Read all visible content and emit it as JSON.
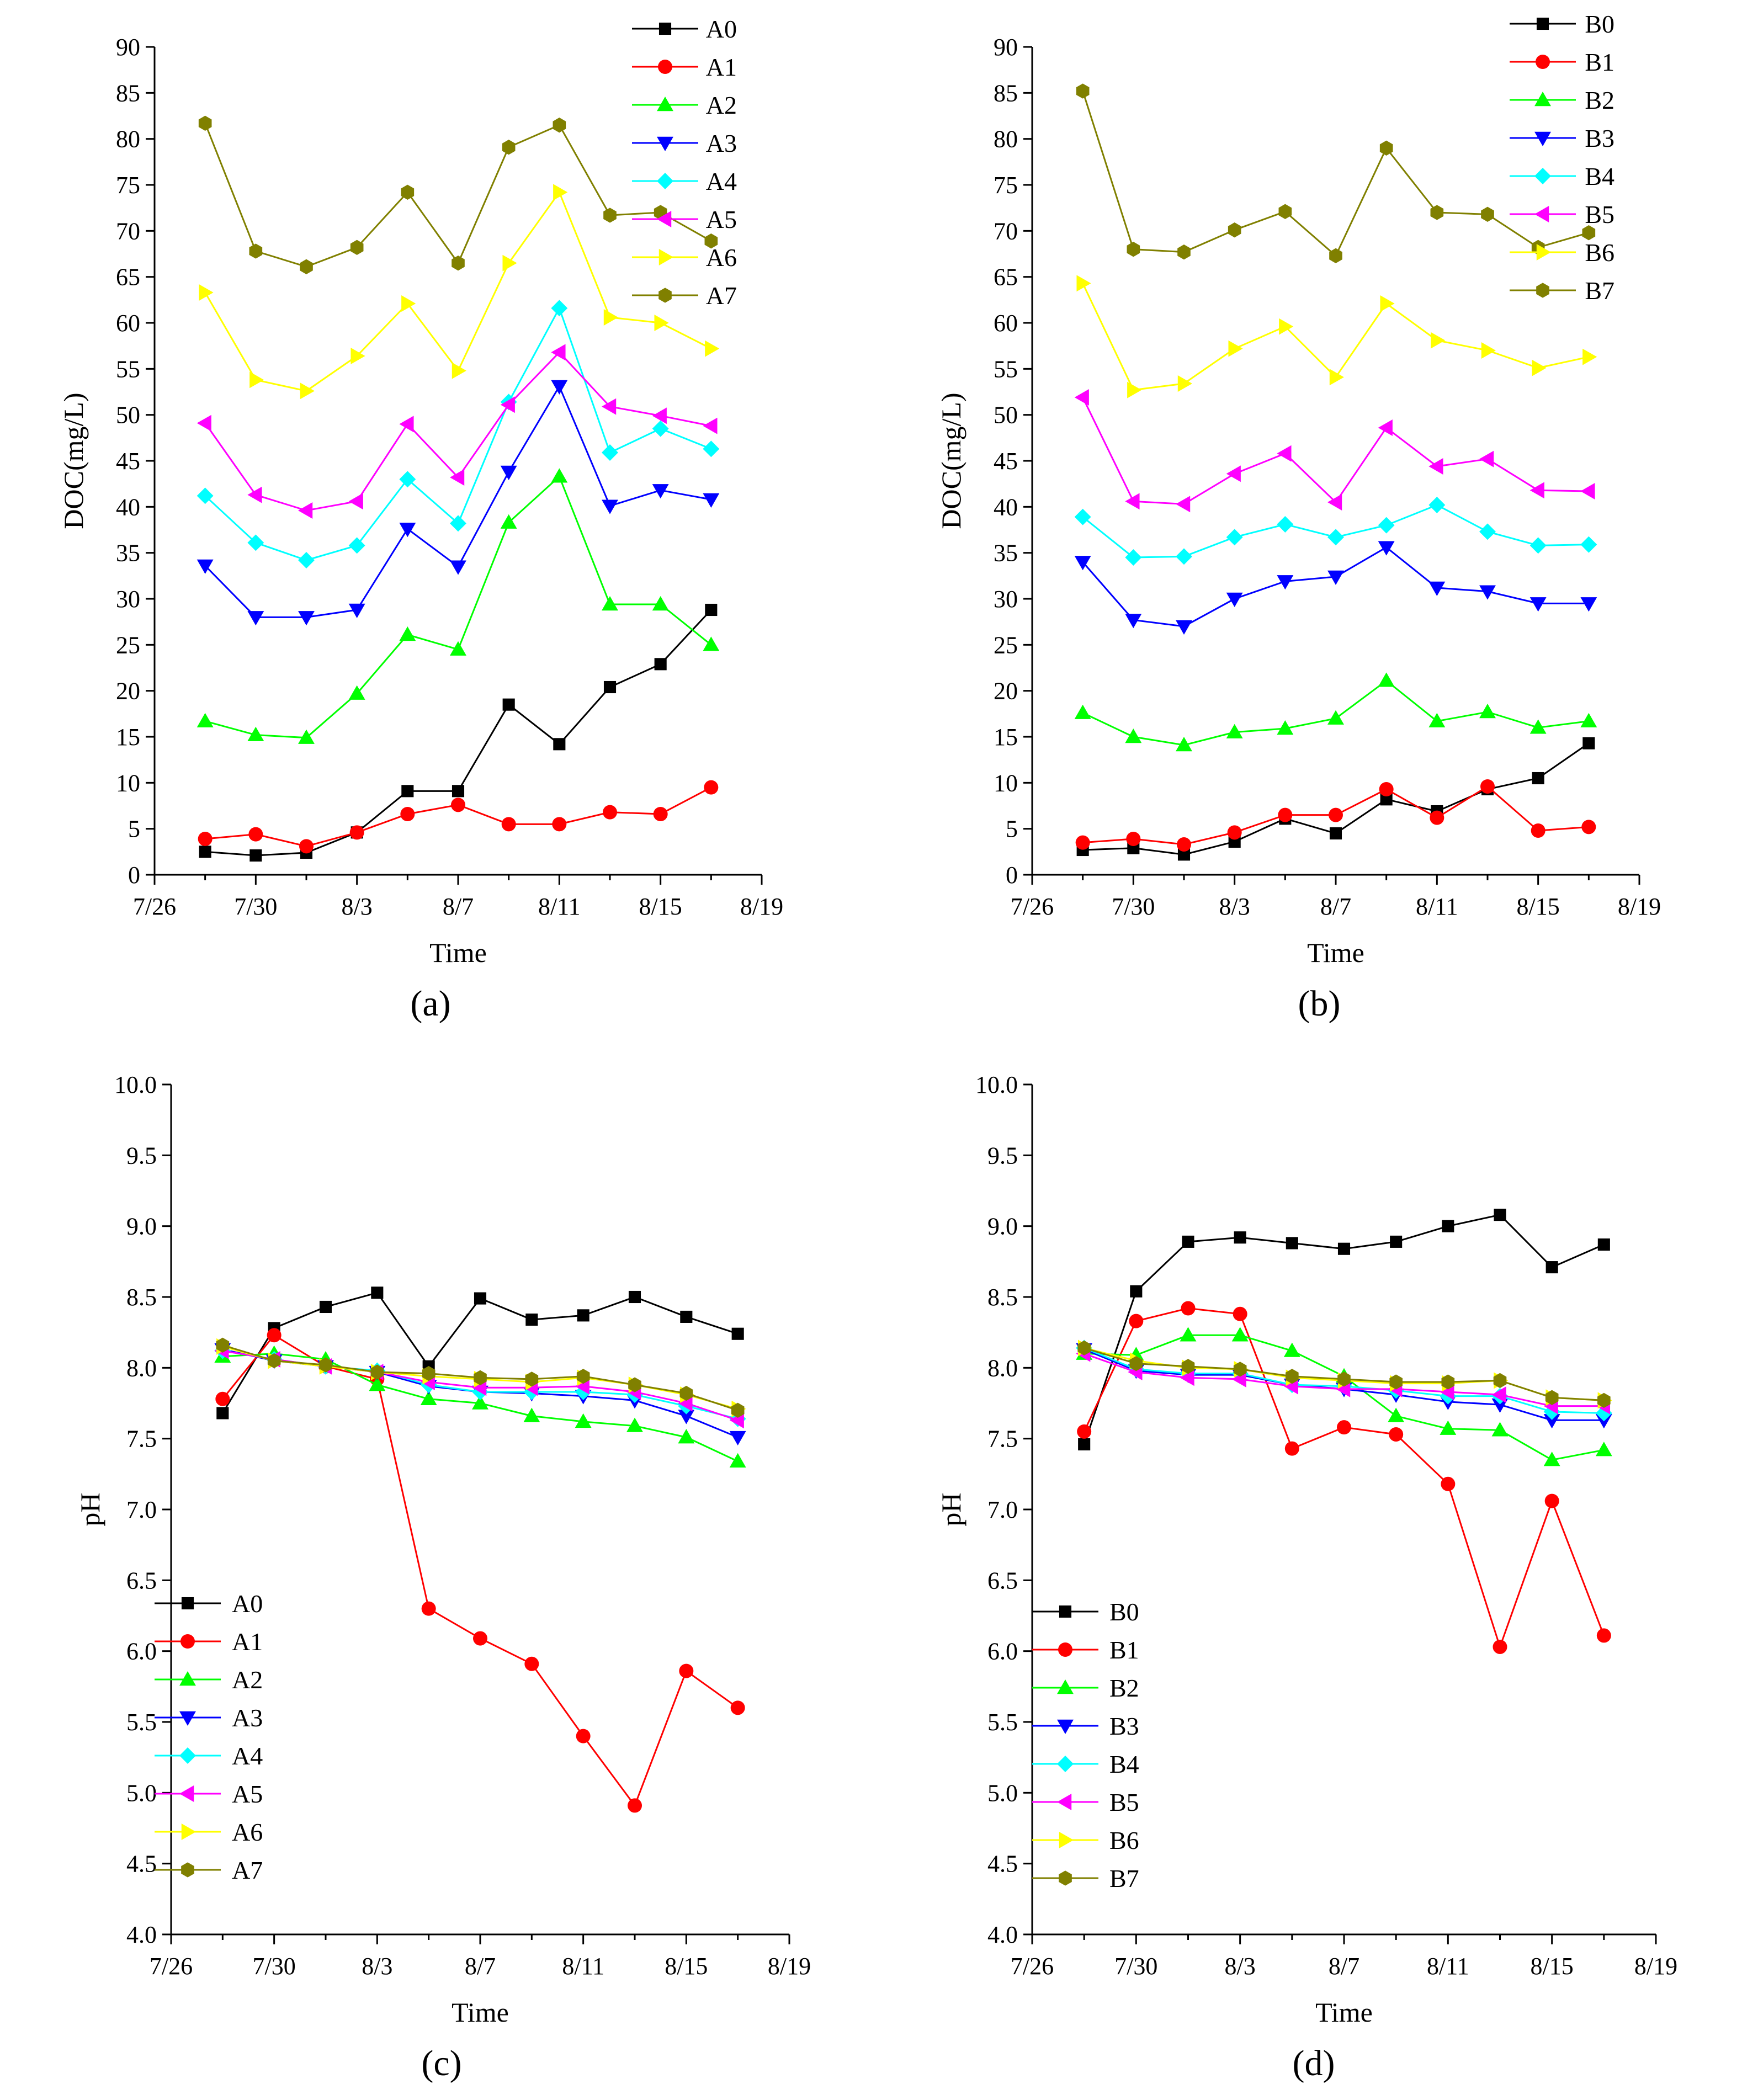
{
  "chart_data": [
    {
      "panel": "a",
      "panel_label": "(a)",
      "type": "line",
      "xlabel": "Time",
      "ylabel": "DOC(mg/L)",
      "x_ticks": [
        "7/26",
        "7/30",
        "8/3",
        "8/7",
        "8/11",
        "8/15",
        "8/19"
      ],
      "y_ticks": [
        "0",
        "5",
        "10",
        "15",
        "20",
        "25",
        "30",
        "35",
        "40",
        "45",
        "50",
        "55",
        "60",
        "65",
        "70",
        "75",
        "80",
        "85",
        "90"
      ],
      "xlim": [
        0,
        24
      ],
      "ylim": [
        0,
        90
      ],
      "legend_position": "top-right",
      "x_days_from_7_26": [
        2,
        4,
        6,
        8,
        10,
        12,
        14,
        16,
        18,
        20,
        22
      ],
      "series": [
        {
          "name": "A0",
          "marker": "square",
          "color": "#000000",
          "values": [
            2.5,
            2.1,
            2.4,
            4.6,
            9.1,
            9.1,
            18.5,
            14.2,
            20.4,
            22.9,
            28.8
          ]
        },
        {
          "name": "A1",
          "marker": "circle",
          "color": "#FF0000",
          "values": [
            3.9,
            4.4,
            3.1,
            4.6,
            6.6,
            7.6,
            5.5,
            5.5,
            6.8,
            6.6,
            9.5
          ]
        },
        {
          "name": "A2",
          "marker": "triangle-up",
          "color": "#00FF00",
          "values": [
            16.7,
            15.2,
            14.9,
            19.7,
            26.1,
            24.5,
            38.3,
            43.3,
            29.4,
            29.4,
            25.0
          ]
        },
        {
          "name": "A3",
          "marker": "triangle-down",
          "color": "#0000FF",
          "values": [
            33.6,
            28.0,
            28.0,
            28.8,
            37.6,
            33.5,
            43.8,
            53.1,
            40.1,
            41.8,
            40.8
          ]
        },
        {
          "name": "A4",
          "marker": "diamond",
          "color": "#00FFFF",
          "values": [
            41.2,
            36.1,
            34.2,
            35.8,
            43.0,
            38.2,
            51.4,
            61.6,
            45.9,
            48.5,
            46.3
          ]
        },
        {
          "name": "A5",
          "marker": "triangle-left",
          "color": "#FF00FF",
          "values": [
            49.1,
            41.3,
            39.6,
            40.6,
            49.0,
            43.2,
            51.1,
            56.8,
            50.9,
            49.9,
            48.8
          ]
        },
        {
          "name": "A6",
          "marker": "triangle-right",
          "color": "#FFFF00",
          "values": [
            63.3,
            53.8,
            52.6,
            56.4,
            62.1,
            54.8,
            66.5,
            74.2,
            60.6,
            60.0,
            57.2
          ]
        },
        {
          "name": "A7",
          "marker": "hexagon",
          "color": "#808000",
          "values": [
            81.7,
            67.8,
            66.1,
            68.2,
            74.2,
            66.5,
            79.1,
            81.5,
            71.7,
            72.0,
            68.9
          ]
        }
      ]
    },
    {
      "panel": "b",
      "panel_label": "(b)",
      "type": "line",
      "xlabel": "Time",
      "ylabel": "DOC(mg/L)",
      "x_ticks": [
        "7/26",
        "7/30",
        "8/3",
        "8/7",
        "8/11",
        "8/15",
        "8/19"
      ],
      "y_ticks": [
        "0",
        "5",
        "10",
        "15",
        "20",
        "25",
        "30",
        "35",
        "40",
        "45",
        "50",
        "55",
        "60",
        "65",
        "70",
        "75",
        "80",
        "85",
        "90"
      ],
      "xlim": [
        0,
        24
      ],
      "ylim": [
        0,
        90
      ],
      "legend_position": "top-right",
      "x_days_from_7_26": [
        2,
        4,
        6,
        8,
        10,
        12,
        14,
        16,
        18,
        20,
        22
      ],
      "series": [
        {
          "name": "B0",
          "marker": "square",
          "color": "#000000",
          "values": [
            2.7,
            2.9,
            2.2,
            3.6,
            6.1,
            4.5,
            8.2,
            6.9,
            9.3,
            10.5,
            14.3
          ]
        },
        {
          "name": "B1",
          "marker": "circle",
          "color": "#FF0000",
          "values": [
            3.5,
            3.9,
            3.3,
            4.6,
            6.5,
            6.5,
            9.3,
            6.2,
            9.6,
            4.8,
            5.2
          ]
        },
        {
          "name": "B2",
          "marker": "triangle-up",
          "color": "#00FF00",
          "values": [
            17.6,
            15.0,
            14.1,
            15.5,
            15.9,
            17.0,
            21.1,
            16.7,
            17.7,
            16.0,
            16.7
          ]
        },
        {
          "name": "B3",
          "marker": "triangle-down",
          "color": "#0000FF",
          "values": [
            34.0,
            27.7,
            27.0,
            30.0,
            31.9,
            32.4,
            35.6,
            31.2,
            30.8,
            29.5,
            29.5
          ]
        },
        {
          "name": "B4",
          "marker": "diamond",
          "color": "#00FFFF",
          "values": [
            38.9,
            34.5,
            34.6,
            36.7,
            38.1,
            36.7,
            38.0,
            40.2,
            37.3,
            35.8,
            35.9
          ]
        },
        {
          "name": "B5",
          "marker": "triangle-left",
          "color": "#FF00FF",
          "values": [
            51.9,
            40.6,
            40.3,
            43.6,
            45.8,
            40.5,
            48.6,
            44.4,
            45.2,
            41.8,
            41.7
          ]
        },
        {
          "name": "B6",
          "marker": "triangle-right",
          "color": "#FFFF00",
          "values": [
            64.3,
            52.7,
            53.4,
            57.2,
            59.6,
            54.1,
            62.1,
            58.1,
            57.0,
            55.1,
            56.3
          ]
        },
        {
          "name": "B7",
          "marker": "hexagon",
          "color": "#808000",
          "values": [
            85.2,
            68.0,
            67.7,
            70.1,
            72.1,
            67.3,
            79.0,
            72.0,
            71.8,
            68.2,
            69.8
          ]
        }
      ]
    },
    {
      "panel": "c",
      "panel_label": "(c)",
      "type": "line",
      "xlabel": "Time",
      "ylabel": "pH",
      "x_ticks": [
        "7/26",
        "7/30",
        "8/3",
        "8/7",
        "8/11",
        "8/15",
        "8/19"
      ],
      "y_ticks": [
        "4.0",
        "4.5",
        "5.0",
        "5.5",
        "6.0",
        "6.5",
        "7.0",
        "7.5",
        "8.0",
        "8.5",
        "9.0",
        "9.5",
        "10.0"
      ],
      "xlim": [
        0,
        24
      ],
      "ylim": [
        4,
        10
      ],
      "legend_position": "bottom-left",
      "x_days_from_7_26": [
        2,
        4,
        6,
        8,
        10,
        12,
        14,
        16,
        18,
        20,
        22
      ],
      "series": [
        {
          "name": "A0",
          "marker": "square",
          "color": "#000000",
          "values": [
            7.68,
            8.28,
            8.43,
            8.53,
            8.01,
            8.49,
            8.34,
            8.37,
            8.5,
            8.36,
            8.24
          ]
        },
        {
          "name": "A1",
          "marker": "circle",
          "color": "#FF0000",
          "values": [
            7.78,
            8.23,
            8.01,
            7.92,
            6.3,
            6.09,
            5.91,
            5.4,
            4.91,
            5.86,
            5.6
          ]
        },
        {
          "name": "A2",
          "marker": "triangle-up",
          "color": "#00FF00",
          "values": [
            8.08,
            8.1,
            8.06,
            7.88,
            7.78,
            7.75,
            7.66,
            7.62,
            7.59,
            7.51,
            7.34
          ]
        },
        {
          "name": "A3",
          "marker": "triangle-down",
          "color": "#0000FF",
          "values": [
            8.13,
            8.05,
            8.01,
            7.97,
            7.87,
            7.83,
            7.82,
            7.8,
            7.77,
            7.66,
            7.51
          ]
        },
        {
          "name": "A4",
          "marker": "diamond",
          "color": "#00FFFF",
          "values": [
            8.12,
            8.06,
            8.01,
            7.98,
            7.88,
            7.83,
            7.83,
            7.83,
            7.81,
            7.73,
            7.64
          ]
        },
        {
          "name": "A5",
          "marker": "triangle-left",
          "color": "#FF00FF",
          "values": [
            8.12,
            8.06,
            8.01,
            7.97,
            7.9,
            7.86,
            7.86,
            7.87,
            7.83,
            7.75,
            7.63
          ]
        },
        {
          "name": "A6",
          "marker": "triangle-right",
          "color": "#FFFF00",
          "values": [
            8.15,
            8.05,
            8.01,
            7.97,
            7.94,
            7.92,
            7.9,
            7.93,
            7.88,
            7.81,
            7.71
          ]
        },
        {
          "name": "A7",
          "marker": "hexagon",
          "color": "#808000",
          "values": [
            8.16,
            8.05,
            8.02,
            7.97,
            7.96,
            7.93,
            7.92,
            7.94,
            7.88,
            7.82,
            7.7
          ]
        }
      ]
    },
    {
      "panel": "d",
      "panel_label": "(d)",
      "type": "line",
      "xlabel": "Time",
      "ylabel": "pH",
      "x_ticks": [
        "7/26",
        "7/30",
        "8/3",
        "8/7",
        "8/11",
        "8/15",
        "8/19"
      ],
      "y_ticks": [
        "4.0",
        "4.5",
        "5.0",
        "5.5",
        "6.0",
        "6.5",
        "7.0",
        "7.5",
        "8.0",
        "8.5",
        "9.0",
        "9.5",
        "10.0"
      ],
      "xlim": [
        0,
        24
      ],
      "ylim": [
        4,
        10
      ],
      "legend_position": "bottom-left",
      "x_days_from_7_26": [
        2,
        4,
        6,
        8,
        10,
        12,
        14,
        16,
        18,
        20,
        22
      ],
      "series": [
        {
          "name": "B0",
          "marker": "square",
          "color": "#000000",
          "values": [
            7.46,
            8.54,
            8.89,
            8.92,
            8.88,
            8.84,
            8.89,
            9.0,
            9.08,
            8.71,
            8.87
          ]
        },
        {
          "name": "B1",
          "marker": "circle",
          "color": "#FF0000",
          "values": [
            7.55,
            8.33,
            8.42,
            8.38,
            7.43,
            7.58,
            7.53,
            7.18,
            6.03,
            7.06,
            6.11
          ]
        },
        {
          "name": "B2",
          "marker": "triangle-up",
          "color": "#00FF00",
          "values": [
            8.1,
            8.09,
            8.23,
            8.23,
            8.12,
            7.94,
            7.66,
            7.57,
            7.56,
            7.35,
            7.42
          ]
        },
        {
          "name": "B3",
          "marker": "triangle-down",
          "color": "#0000FF",
          "values": [
            8.13,
            7.98,
            7.95,
            7.95,
            7.88,
            7.85,
            7.81,
            7.76,
            7.74,
            7.63,
            7.63
          ]
        },
        {
          "name": "B4",
          "marker": "diamond",
          "color": "#00FFFF",
          "values": [
            8.14,
            7.99,
            7.96,
            7.96,
            7.88,
            7.87,
            7.84,
            7.8,
            7.8,
            7.69,
            7.68
          ]
        },
        {
          "name": "B5",
          "marker": "triangle-left",
          "color": "#FF00FF",
          "values": [
            8.1,
            7.97,
            7.93,
            7.92,
            7.87,
            7.85,
            7.85,
            7.83,
            7.81,
            7.73,
            7.73
          ]
        },
        {
          "name": "B6",
          "marker": "triangle-right",
          "color": "#FFFF00",
          "values": [
            8.14,
            8.05,
            8.0,
            7.99,
            7.93,
            7.91,
            7.89,
            7.89,
            7.91,
            7.79,
            7.77
          ]
        },
        {
          "name": "B7",
          "marker": "hexagon",
          "color": "#808000",
          "values": [
            8.14,
            8.03,
            8.01,
            7.99,
            7.94,
            7.92,
            7.9,
            7.9,
            7.91,
            7.79,
            7.77
          ]
        }
      ]
    }
  ]
}
